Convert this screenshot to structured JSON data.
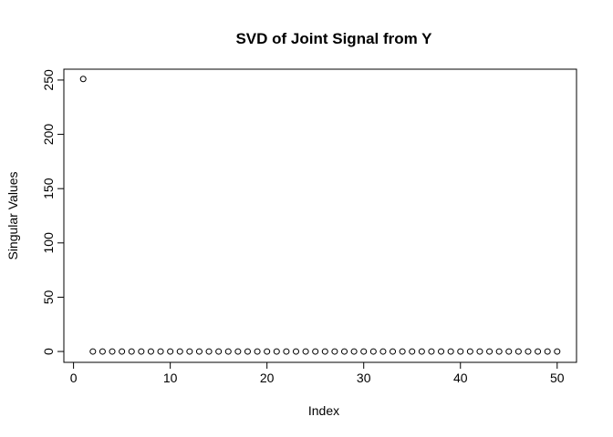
{
  "chart_data": {
    "type": "scatter",
    "title": "SVD of Joint Signal from Y",
    "xlabel": "Index",
    "ylabel": "Singular Values",
    "xlim": [
      -1,
      52
    ],
    "ylim": [
      -10,
      260
    ],
    "xticks": [
      0,
      10,
      20,
      30,
      40,
      50
    ],
    "yticks": [
      0,
      50,
      100,
      150,
      200,
      250
    ],
    "grid": false,
    "marker": "open-circle",
    "series": [
      {
        "x": [
          1,
          2,
          3,
          4,
          5,
          6,
          7,
          8,
          9,
          10,
          11,
          12,
          13,
          14,
          15,
          16,
          17,
          18,
          19,
          20,
          21,
          22,
          23,
          24,
          25,
          26,
          27,
          28,
          29,
          30,
          31,
          32,
          33,
          34,
          35,
          36,
          37,
          38,
          39,
          40,
          41,
          42,
          43,
          44,
          45,
          46,
          47,
          48,
          49,
          50
        ],
        "values": [
          251,
          0,
          0,
          0,
          0,
          0,
          0,
          0,
          0,
          0,
          0,
          0,
          0,
          0,
          0,
          0,
          0,
          0,
          0,
          0,
          0,
          0,
          0,
          0,
          0,
          0,
          0,
          0,
          0,
          0,
          0,
          0,
          0,
          0,
          0,
          0,
          0,
          0,
          0,
          0,
          0,
          0,
          0,
          0,
          0,
          0,
          0,
          0,
          0,
          0
        ]
      }
    ]
  }
}
